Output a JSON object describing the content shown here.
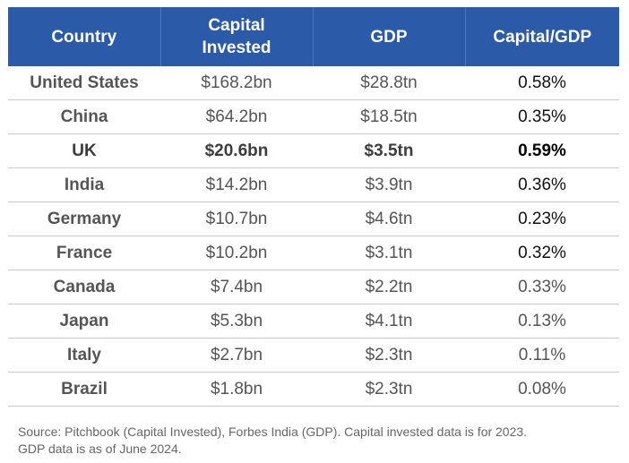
{
  "chart_data": {
    "type": "table",
    "columns": [
      "Country",
      "Capital Invested",
      "GDP",
      "Capital/GDP"
    ],
    "rows": [
      {
        "country": "United States",
        "capital": "$168.2bn",
        "gdp": "$28.8tn",
        "ratio": "0.58%"
      },
      {
        "country": "China",
        "capital": "$64.2bn",
        "gdp": "$18.5tn",
        "ratio": "0.35%"
      },
      {
        "country": "UK",
        "capital": "$20.6bn",
        "gdp": "$3.5tn",
        "ratio": "0.59%"
      },
      {
        "country": "India",
        "capital": "$14.2bn",
        "gdp": "$3.9tn",
        "ratio": "0.36%"
      },
      {
        "country": "Germany",
        "capital": "$10.7bn",
        "gdp": "$4.6tn",
        "ratio": "0.23%"
      },
      {
        "country": "France",
        "capital": "$10.2bn",
        "gdp": "$3.1tn",
        "ratio": "0.32%"
      },
      {
        "country": "Canada",
        "capital": "$7.4bn",
        "gdp": "$2.2tn",
        "ratio": "0.33%"
      },
      {
        "country": "Japan",
        "capital": "$5.3bn",
        "gdp": "$4.1tn",
        "ratio": "0.13%"
      },
      {
        "country": "Italy",
        "capital": "$2.7bn",
        "gdp": "$2.3tn",
        "ratio": "0.11%"
      },
      {
        "country": "Brazil",
        "capital": "$1.8bn",
        "gdp": "$2.3tn",
        "ratio": "0.08%"
      }
    ],
    "highlighted_row": "UK",
    "header_color": "#2a5aa8"
  },
  "footnote": {
    "line1": "Source: Pitchbook (Capital Invested), Forbes India (GDP).  Capital invested data is for 2023.",
    "line2": "GDP data is as of June 2024."
  }
}
